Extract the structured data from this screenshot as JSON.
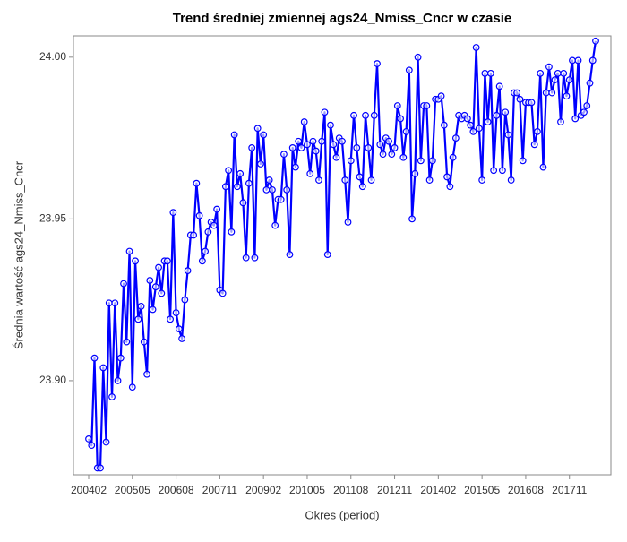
{
  "chart_data": {
    "type": "line",
    "title": "Trend średniej zmiennej ags24_Nmiss_Cncr w czasie",
    "xlabel": "Okres (period)",
    "ylabel": "Średnia wartość ags24_Nmiss_Cncr",
    "color": "#0000ff",
    "ylim": [
      23.8709,
      24.0066
    ],
    "yticks": [
      {
        "value": 23.9,
        "label": "23.90"
      },
      {
        "value": 23.95,
        "label": "23.95"
      },
      {
        "value": 24.0,
        "label": "24.00"
      }
    ],
    "categories": [
      "200402",
      null,
      null,
      null,
      null,
      null,
      null,
      null,
      null,
      null,
      null,
      null,
      null,
      null,
      null,
      "200505",
      null,
      null,
      null,
      null,
      null,
      null,
      null,
      null,
      null,
      null,
      null,
      null,
      null,
      null,
      "200608",
      null,
      null,
      null,
      null,
      null,
      null,
      null,
      null,
      null,
      null,
      null,
      null,
      null,
      null,
      "200711",
      null,
      null,
      null,
      null,
      null,
      null,
      null,
      null,
      null,
      null,
      null,
      null,
      null,
      null,
      "200902",
      null,
      null,
      null,
      null,
      null,
      null,
      null,
      null,
      null,
      null,
      null,
      null,
      null,
      null,
      "201005",
      null,
      null,
      null,
      null,
      null,
      null,
      null,
      null,
      null,
      null,
      null,
      null,
      null,
      null,
      "201108",
      null,
      null,
      null,
      null,
      null,
      null,
      null,
      null,
      null,
      null,
      null,
      null,
      null,
      null,
      "201211",
      null,
      null,
      null,
      null,
      null,
      null,
      null,
      null,
      null,
      null,
      null,
      null,
      null,
      null,
      "201402",
      null,
      null,
      null,
      null,
      null,
      null,
      null,
      null,
      null,
      null,
      null,
      null,
      null,
      null,
      "201505",
      null,
      null,
      null,
      null,
      null,
      null,
      null,
      null,
      null,
      null,
      null,
      null,
      null,
      null,
      "201608",
      null,
      null,
      null,
      null,
      null,
      null,
      null,
      null,
      null,
      null,
      null,
      null,
      null,
      null,
      "201711",
      null,
      null,
      null,
      null,
      null,
      null,
      null,
      null,
      null
    ],
    "values": [
      23.882,
      23.88,
      23.907,
      23.873,
      23.873,
      23.904,
      23.881,
      23.924,
      23.895,
      23.924,
      23.9,
      23.907,
      23.93,
      23.912,
      23.94,
      23.898,
      23.937,
      23.919,
      23.923,
      23.912,
      23.902,
      23.931,
      23.922,
      23.929,
      23.935,
      23.927,
      23.937,
      23.937,
      23.919,
      23.952,
      23.921,
      23.916,
      23.913,
      23.925,
      23.934,
      23.945,
      23.945,
      23.961,
      23.951,
      23.937,
      23.94,
      23.946,
      23.949,
      23.948,
      23.953,
      23.928,
      23.927,
      23.96,
      23.965,
      23.946,
      23.976,
      23.96,
      23.964,
      23.955,
      23.938,
      23.961,
      23.972,
      23.938,
      23.978,
      23.967,
      23.976,
      23.959,
      23.962,
      23.959,
      23.948,
      23.956,
      23.956,
      23.97,
      23.959,
      23.939,
      23.972,
      23.966,
      23.974,
      23.972,
      23.98,
      23.973,
      23.964,
      23.974,
      23.971,
      23.962,
      23.974,
      23.983,
      23.939,
      23.979,
      23.973,
      23.969,
      23.975,
      23.974,
      23.962,
      23.949,
      23.968,
      23.982,
      23.972,
      23.963,
      23.96,
      23.982,
      23.972,
      23.962,
      23.982,
      23.998,
      23.973,
      23.97,
      23.975,
      23.974,
      23.97,
      23.972,
      23.985,
      23.981,
      23.969,
      23.977,
      23.996,
      23.95,
      23.964,
      24.0,
      23.968,
      23.985,
      23.985,
      23.962,
      23.968,
      23.987,
      23.987,
      23.988,
      23.979,
      23.963,
      23.96,
      23.969,
      23.975,
      23.982,
      23.981,
      23.982,
      23.981,
      23.979,
      23.977,
      24.003,
      23.978,
      23.962,
      23.995,
      23.98,
      23.995,
      23.965,
      23.982,
      23.991,
      23.965,
      23.983,
      23.976,
      23.962,
      23.989,
      23.989,
      23.987,
      23.968,
      23.986,
      23.986,
      23.986,
      23.973,
      23.977,
      23.995,
      23.966,
      23.989,
      23.997,
      23.989,
      23.993,
      23.995,
      23.98,
      23.995,
      23.988,
      23.993,
      23.999,
      23.981,
      23.999,
      23.982,
      23.983,
      23.985,
      23.992,
      23.999,
      24.005
    ]
  }
}
